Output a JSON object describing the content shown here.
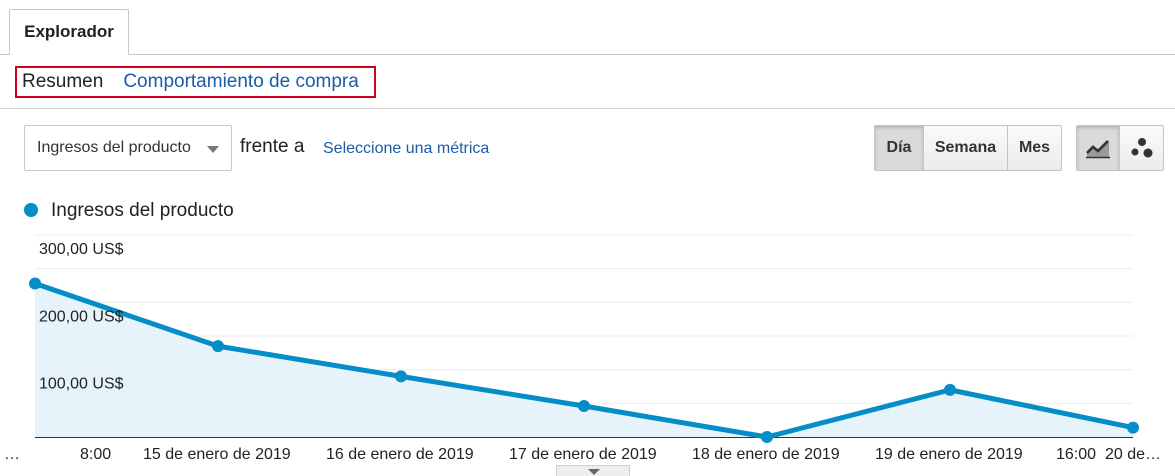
{
  "tabs": {
    "explorer_label": "Explorador"
  },
  "subnav": {
    "summary_label": "Resumen",
    "behavior_label": "Comportamiento de compra"
  },
  "controls": {
    "metric_selected": "Ingresos del producto",
    "versus_label": "frente a",
    "select_metric_label": "Seleccione una métrica",
    "period_buttons": [
      "Día",
      "Semana",
      "Mes"
    ],
    "period_active": "Día",
    "chart_type_icons": [
      "line-chart-icon",
      "motion-chart-icon"
    ],
    "chart_type_active": "line-chart-icon"
  },
  "legend": {
    "series_label": "Ingresos del producto"
  },
  "colors": {
    "series": "#058dc7",
    "fill": "#e6f3fa",
    "link": "#1a5ca8",
    "highlight_border": "#d0021b"
  },
  "chart_data": {
    "type": "area",
    "x": [
      "…",
      "15 de enero de 2019",
      "16 de enero de 2019",
      "17 de enero de 2019",
      "18 de enero de 2019",
      "19 de enero de 2019",
      "20 de…"
    ],
    "series": [
      {
        "name": "Ingresos del producto",
        "values": [
          228,
          135,
          90,
          46,
          0,
          70,
          14
        ]
      }
    ],
    "ylim": [
      0,
      300
    ],
    "y_ticks": [
      100,
      200,
      300
    ],
    "y_tick_labels": [
      "100,00 US$",
      "200,00 US$",
      "300,00 US$"
    ],
    "x_tick_labels": [
      "…",
      "8:00",
      "15 de enero de 2019",
      "16 de enero de 2019",
      "17 de enero de 2019",
      "18 de enero de 2019",
      "19 de enero de 2019",
      "16:00",
      "20 de…"
    ],
    "grid": true,
    "legend": "top-left"
  }
}
